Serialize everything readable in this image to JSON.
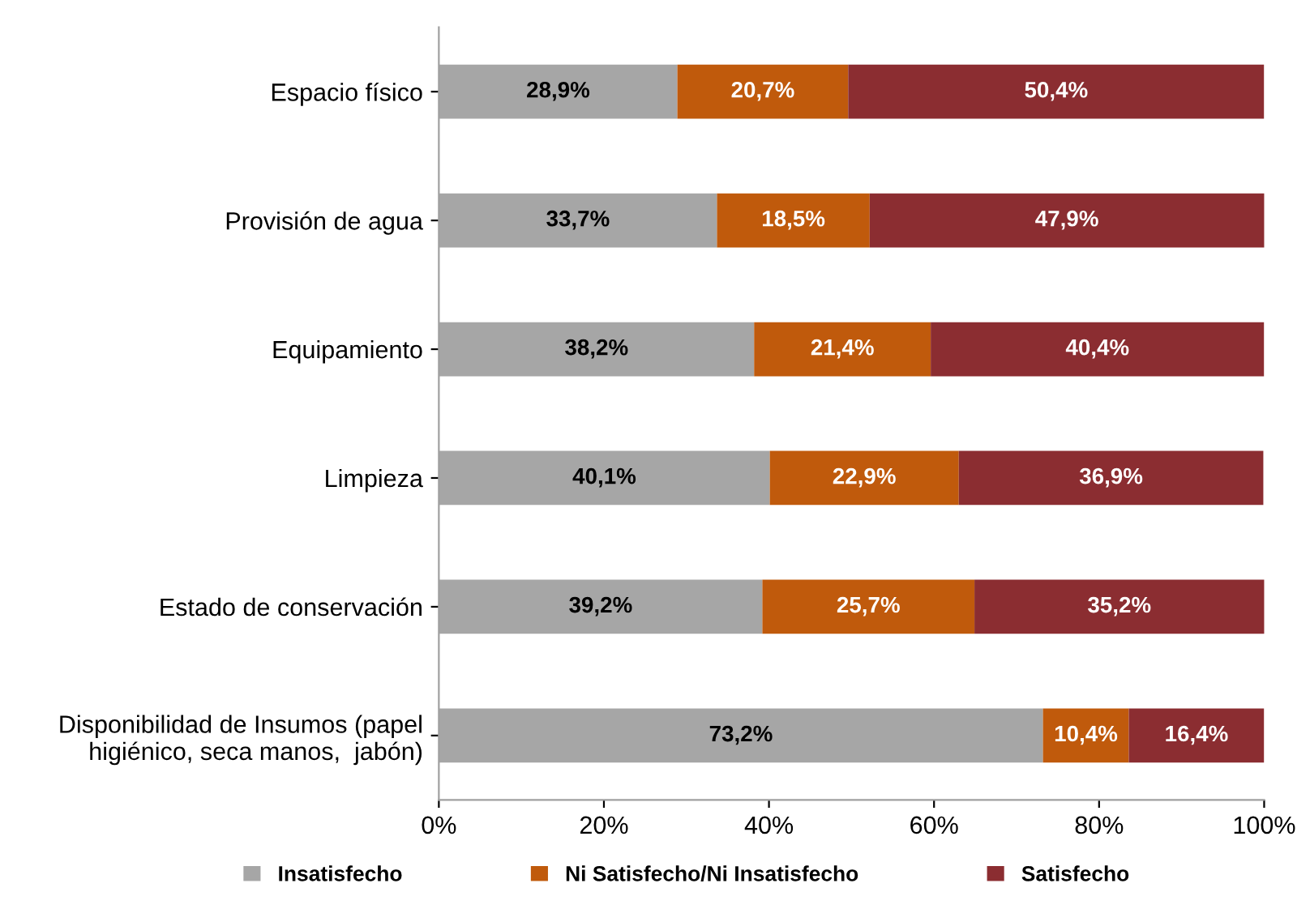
{
  "chart_data": {
    "type": "bar",
    "orientation": "horizontal",
    "stacked": true,
    "categories": [
      "Espacio físico",
      "Provisión de agua",
      "Equipamiento",
      "Limpieza",
      "Estado de conservación",
      "Disponibilidad de Insumos (papel higiénico, seca manos,  jabón)"
    ],
    "series": [
      {
        "name": "Insatisfecho",
        "color": "#a6a6a6",
        "values": [
          28.9,
          33.7,
          38.2,
          40.1,
          39.2,
          73.2
        ],
        "value_labels": [
          "28,9%",
          "33,7%",
          "38,2%",
          "40,1%",
          "39,2%",
          "73,2%"
        ]
      },
      {
        "name": "Ni Satisfecho/Ni Insatisfecho",
        "color": "#c05a0c",
        "values": [
          20.7,
          18.5,
          21.4,
          22.9,
          25.7,
          10.4
        ],
        "value_labels": [
          "20,7%",
          "18,5%",
          "21,4%",
          "22,9%",
          "25,7%",
          "10,4%"
        ]
      },
      {
        "name": "Satisfecho",
        "color": "#8b2d31",
        "values": [
          50.4,
          47.9,
          40.4,
          36.9,
          35.2,
          16.4
        ],
        "value_labels": [
          "50,4%",
          "47,9%",
          "40,4%",
          "36,9%",
          "35,2%",
          "16,4%"
        ]
      }
    ],
    "xlim": [
      0,
      100
    ],
    "xticks": [
      {
        "value": 0,
        "label": "0%"
      },
      {
        "value": 20,
        "label": "20%"
      },
      {
        "value": 40,
        "label": "40%"
      },
      {
        "value": 60,
        "label": "60%"
      },
      {
        "value": 80,
        "label": "80%"
      },
      {
        "value": 100,
        "label": "100%"
      }
    ],
    "grid": false,
    "legend": "bottom"
  }
}
